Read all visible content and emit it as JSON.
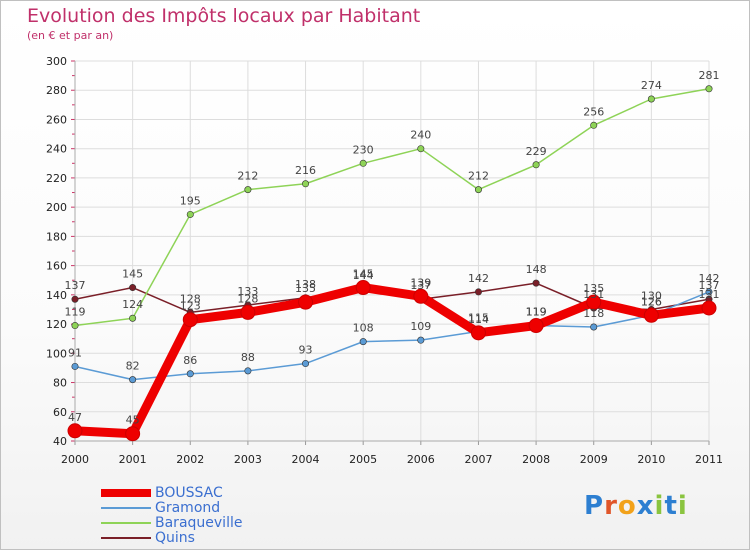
{
  "title": "Evolution des Impôts locaux par Habitant",
  "subtitle": "(en € et par an)",
  "logo_text": "Proxiti",
  "chart_data": {
    "type": "line",
    "title": "Evolution des Impôts locaux par Habitant",
    "subtitle": "(en € et par an)",
    "xlabel": "",
    "ylabel": "",
    "categories": [
      "2000",
      "2001",
      "2002",
      "2003",
      "2004",
      "2005",
      "2006",
      "2007",
      "2008",
      "2009",
      "2010",
      "2011"
    ],
    "ylim": [
      40,
      300
    ],
    "yticks": [
      40,
      60,
      80,
      100,
      120,
      140,
      160,
      180,
      200,
      220,
      240,
      260,
      280,
      300
    ],
    "grid": true,
    "legend_position": "bottom-left",
    "series": [
      {
        "name": "Quins",
        "color": "#7a1f28",
        "values": [
          137,
          145,
          128,
          133,
          138,
          144,
          137,
          142,
          148,
          131,
          130,
          137
        ]
      },
      {
        "name": "Gramond",
        "color": "#5b9bd5",
        "values": [
          91,
          82,
          86,
          88,
          93,
          108,
          109,
          115,
          119,
          118,
          126,
          142
        ]
      },
      {
        "name": "Baraqueville",
        "color": "#8ed357",
        "values": [
          119,
          124,
          195,
          212,
          216,
          230,
          240,
          212,
          229,
          256,
          274,
          281
        ]
      },
      {
        "name": "BOUSSAC",
        "color": "#ee0000",
        "values": [
          47,
          45,
          123,
          128,
          135,
          145,
          139,
          114,
          119,
          135,
          126,
          131
        ]
      }
    ],
    "legend": [
      "BOUSSAC",
      "Gramond",
      "Baraqueville",
      "Quins"
    ]
  }
}
